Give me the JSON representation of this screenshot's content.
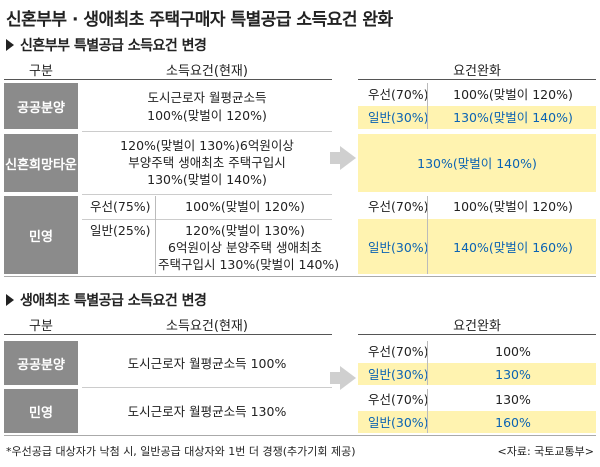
{
  "title": "신혼부부 · 생애최초 주택구매자 특별공급 소득요건 완화",
  "section1": {
    "title": "신혼부부 특별공급 소득요건 변경",
    "col_category": "구분",
    "col_current": "소득요건(현재)",
    "col_relaxed": "요건완화",
    "rows": {
      "public": {
        "label": "공공분양",
        "current_line1": "도시근로자 월평균소득",
        "current_line2": "100%(맞벌이 120%)",
        "priority_label": "우선(70%)",
        "priority_value": "100%(맞벌이 120%)",
        "general_label": "일반(30%)",
        "general_value": "130%(맞벌이 140%)"
      },
      "newlywed_town": {
        "label": "신혼희망타운",
        "current_line1": "120%(맞벌이 130%)6억원이상",
        "current_line2": "부양주택 생애최초 주택구입시",
        "current_line3": "130%(맞벌이 140%)",
        "relaxed": "130%(맞벌이 140%)"
      },
      "private": {
        "label": "민영",
        "priority_current_label": "우선(75%)",
        "priority_current_value": "100%(맞벌이 120%)",
        "general_current_label": "일반(25%)",
        "general_current_line1": "120%(맞벌이 130%)",
        "general_current_line2": "6억원이상 분양주택 생애최초",
        "general_current_line3": "주택구입시 130%(맞벌이 140%)",
        "priority_label": "우선(70%)",
        "priority_value": "100%(맞벌이 120%)",
        "general_label": "일반(30%)",
        "general_value": "140%(맞벌이 160%)"
      }
    }
  },
  "section2": {
    "title": "생애최초 특별공급 소득요건 변경",
    "col_category": "구분",
    "col_current": "소득요건(현재)",
    "col_relaxed": "요건완화",
    "rows": {
      "public": {
        "label": "공공분양",
        "current": "도시근로자 월평균소득 100%",
        "priority_label": "우선(70%)",
        "priority_value": "100%",
        "general_label": "일반(30%)",
        "general_value": "130%"
      },
      "private": {
        "label": "민영",
        "current": "도시근로자 월평균소득 130%",
        "priority_label": "우선(70%)",
        "priority_value": "130%",
        "general_label": "일반(30%)",
        "general_value": "160%"
      }
    }
  },
  "footnote": "*우선공급 대상자가 낙첨 시, 일반공급 대상자와 1번 더 경쟁(추가기회 제공)",
  "source": "<자료: 국토교통부>",
  "colors": {
    "label_bg": "#8b8b8b",
    "highlight_bg": "#fff3b0",
    "accent_blue": "#0b63b3",
    "arrow": "#cfcfcf"
  }
}
